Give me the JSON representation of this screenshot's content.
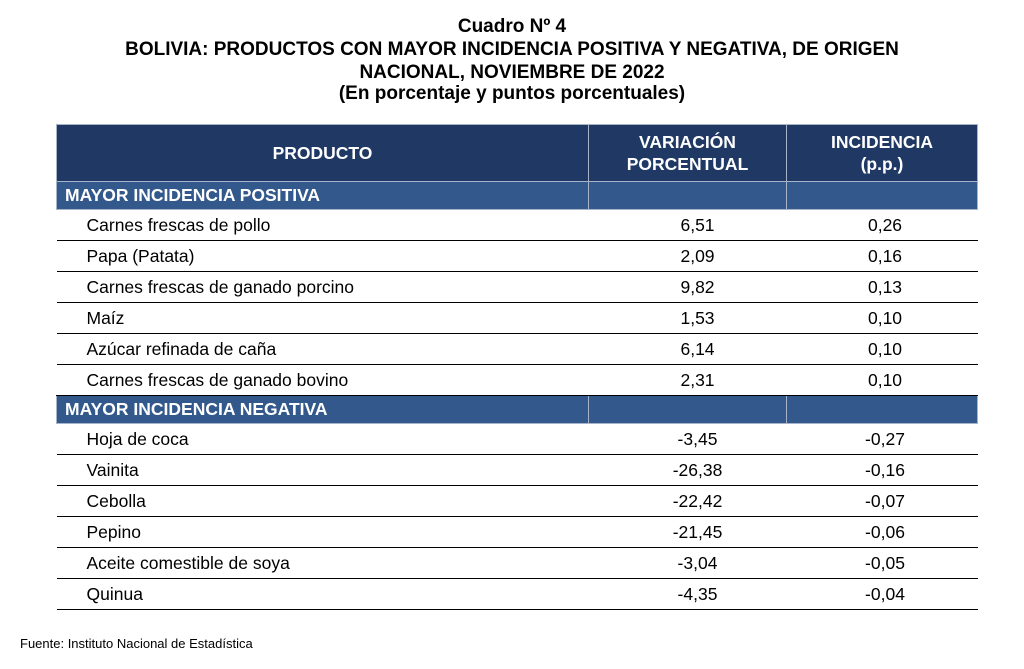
{
  "title": {
    "line1": "Cuadro Nº 4",
    "line2": "BOLIVIA: PRODUCTOS CON MAYOR INCIDENCIA POSITIVA Y NEGATIVA, DE ORIGEN",
    "line3": "NACIONAL, NOVIEMBRE DE 2022",
    "line4": "(En porcentaje y puntos porcentuales)"
  },
  "table": {
    "headers": {
      "producto": "PRODUCTO",
      "variacion_1": "VARIACIÓN",
      "variacion_2": "PORCENTUAL",
      "incidencia_1": "INCIDENCIA",
      "incidencia_2": "(p.p.)"
    },
    "positive": {
      "label": "MAYOR INCIDENCIA POSITIVA",
      "rows": [
        {
          "producto": "Carnes frescas de pollo",
          "variacion": "6,51",
          "incidencia": "0,26"
        },
        {
          "producto": "Papa (Patata)",
          "variacion": "2,09",
          "incidencia": "0,16"
        },
        {
          "producto": "Carnes frescas de ganado porcino",
          "variacion": "9,82",
          "incidencia": "0,13"
        },
        {
          "producto": "Maíz",
          "variacion": "1,53",
          "incidencia": "0,10"
        },
        {
          "producto": "Azúcar refinada de caña",
          "variacion": "6,14",
          "incidencia": "0,10"
        },
        {
          "producto": "Carnes frescas de ganado bovino",
          "variacion": "2,31",
          "incidencia": "0,10"
        }
      ]
    },
    "negative": {
      "label": "MAYOR INCIDENCIA NEGATIVA",
      "rows": [
        {
          "producto": "Hoja de coca",
          "variacion": "-3,45",
          "incidencia": "-0,27"
        },
        {
          "producto": "Vainita",
          "variacion": "-26,38",
          "incidencia": "-0,16"
        },
        {
          "producto": "Cebolla",
          "variacion": "-22,42",
          "incidencia": "-0,07"
        },
        {
          "producto": "Pepino",
          "variacion": "-21,45",
          "incidencia": "-0,06"
        },
        {
          "producto": "Aceite comestible de soya",
          "variacion": "-3,04",
          "incidencia": "-0,05"
        },
        {
          "producto": "Quinua",
          "variacion": "-4,35",
          "incidencia": "-0,04"
        }
      ]
    }
  },
  "source": "Fuente: Instituto Nacional de Estadística",
  "colors": {
    "header_bg": "#1f3864",
    "section_bg": "#33598c",
    "header_text": "#ffffff"
  }
}
